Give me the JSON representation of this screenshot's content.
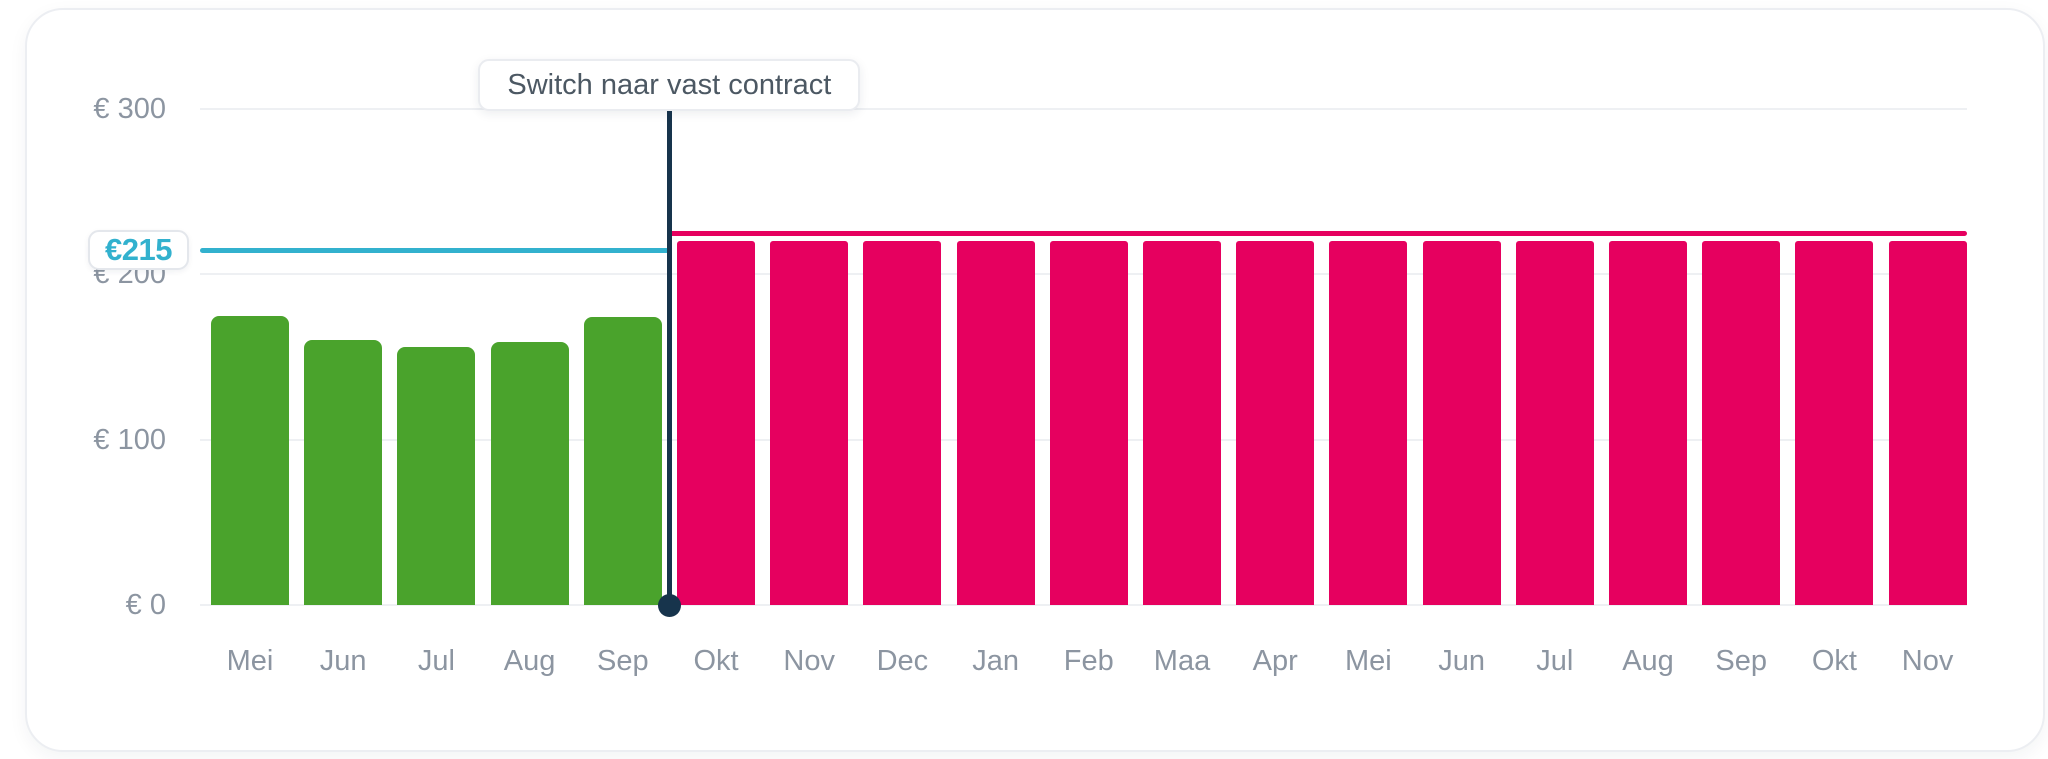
{
  "chart_data": {
    "type": "bar",
    "title": "",
    "currency": "EUR",
    "categories": [
      "Mei",
      "Jun",
      "Jul",
      "Aug",
      "Sep",
      "Okt",
      "Nov",
      "Dec",
      "Jan",
      "Feb",
      "Maa",
      "Apr",
      "Mei",
      "Jun",
      "Jul",
      "Aug",
      "Sep",
      "Okt",
      "Nov"
    ],
    "series": [
      {
        "name": "green-bars-actual",
        "color": "#4aa32c",
        "values": [
          175,
          160,
          156,
          159,
          174,
          null,
          null,
          null,
          null,
          null,
          null,
          null,
          null,
          null,
          null,
          null,
          null,
          null,
          null
        ]
      },
      {
        "name": "pink-bars-projected",
        "color": "#e6005f",
        "values": [
          null,
          null,
          null,
          null,
          null,
          220,
          220,
          220,
          220,
          220,
          220,
          220,
          220,
          220,
          220,
          220,
          220,
          220,
          220
        ]
      }
    ],
    "y_axis": {
      "ticks": [
        {
          "label": "€ 0",
          "value": 0
        },
        {
          "label": "€ 100",
          "value": 100
        },
        {
          "label": "€ 200",
          "value": 200
        },
        {
          "label": "€ 300",
          "value": 300
        }
      ],
      "ylim": [
        0,
        300
      ],
      "grid": true
    },
    "reference_line": {
      "label": "€215",
      "value": 215,
      "color": "#32b1ce"
    },
    "projection_cap_line": {
      "value": 225,
      "color": "#e6005f"
    },
    "annotation": {
      "label": "Switch naar vast contract",
      "boundary_after_category_index": 4,
      "line_color": "#17344c"
    },
    "legend": false
  },
  "colors": {
    "card_border": "#eceef2",
    "gridline": "#eef0f3",
    "axis_text": "#8c95a1",
    "green": "#4aa32c",
    "pink": "#e6005f",
    "teal": "#32b1ce",
    "navy": "#17344c"
  }
}
